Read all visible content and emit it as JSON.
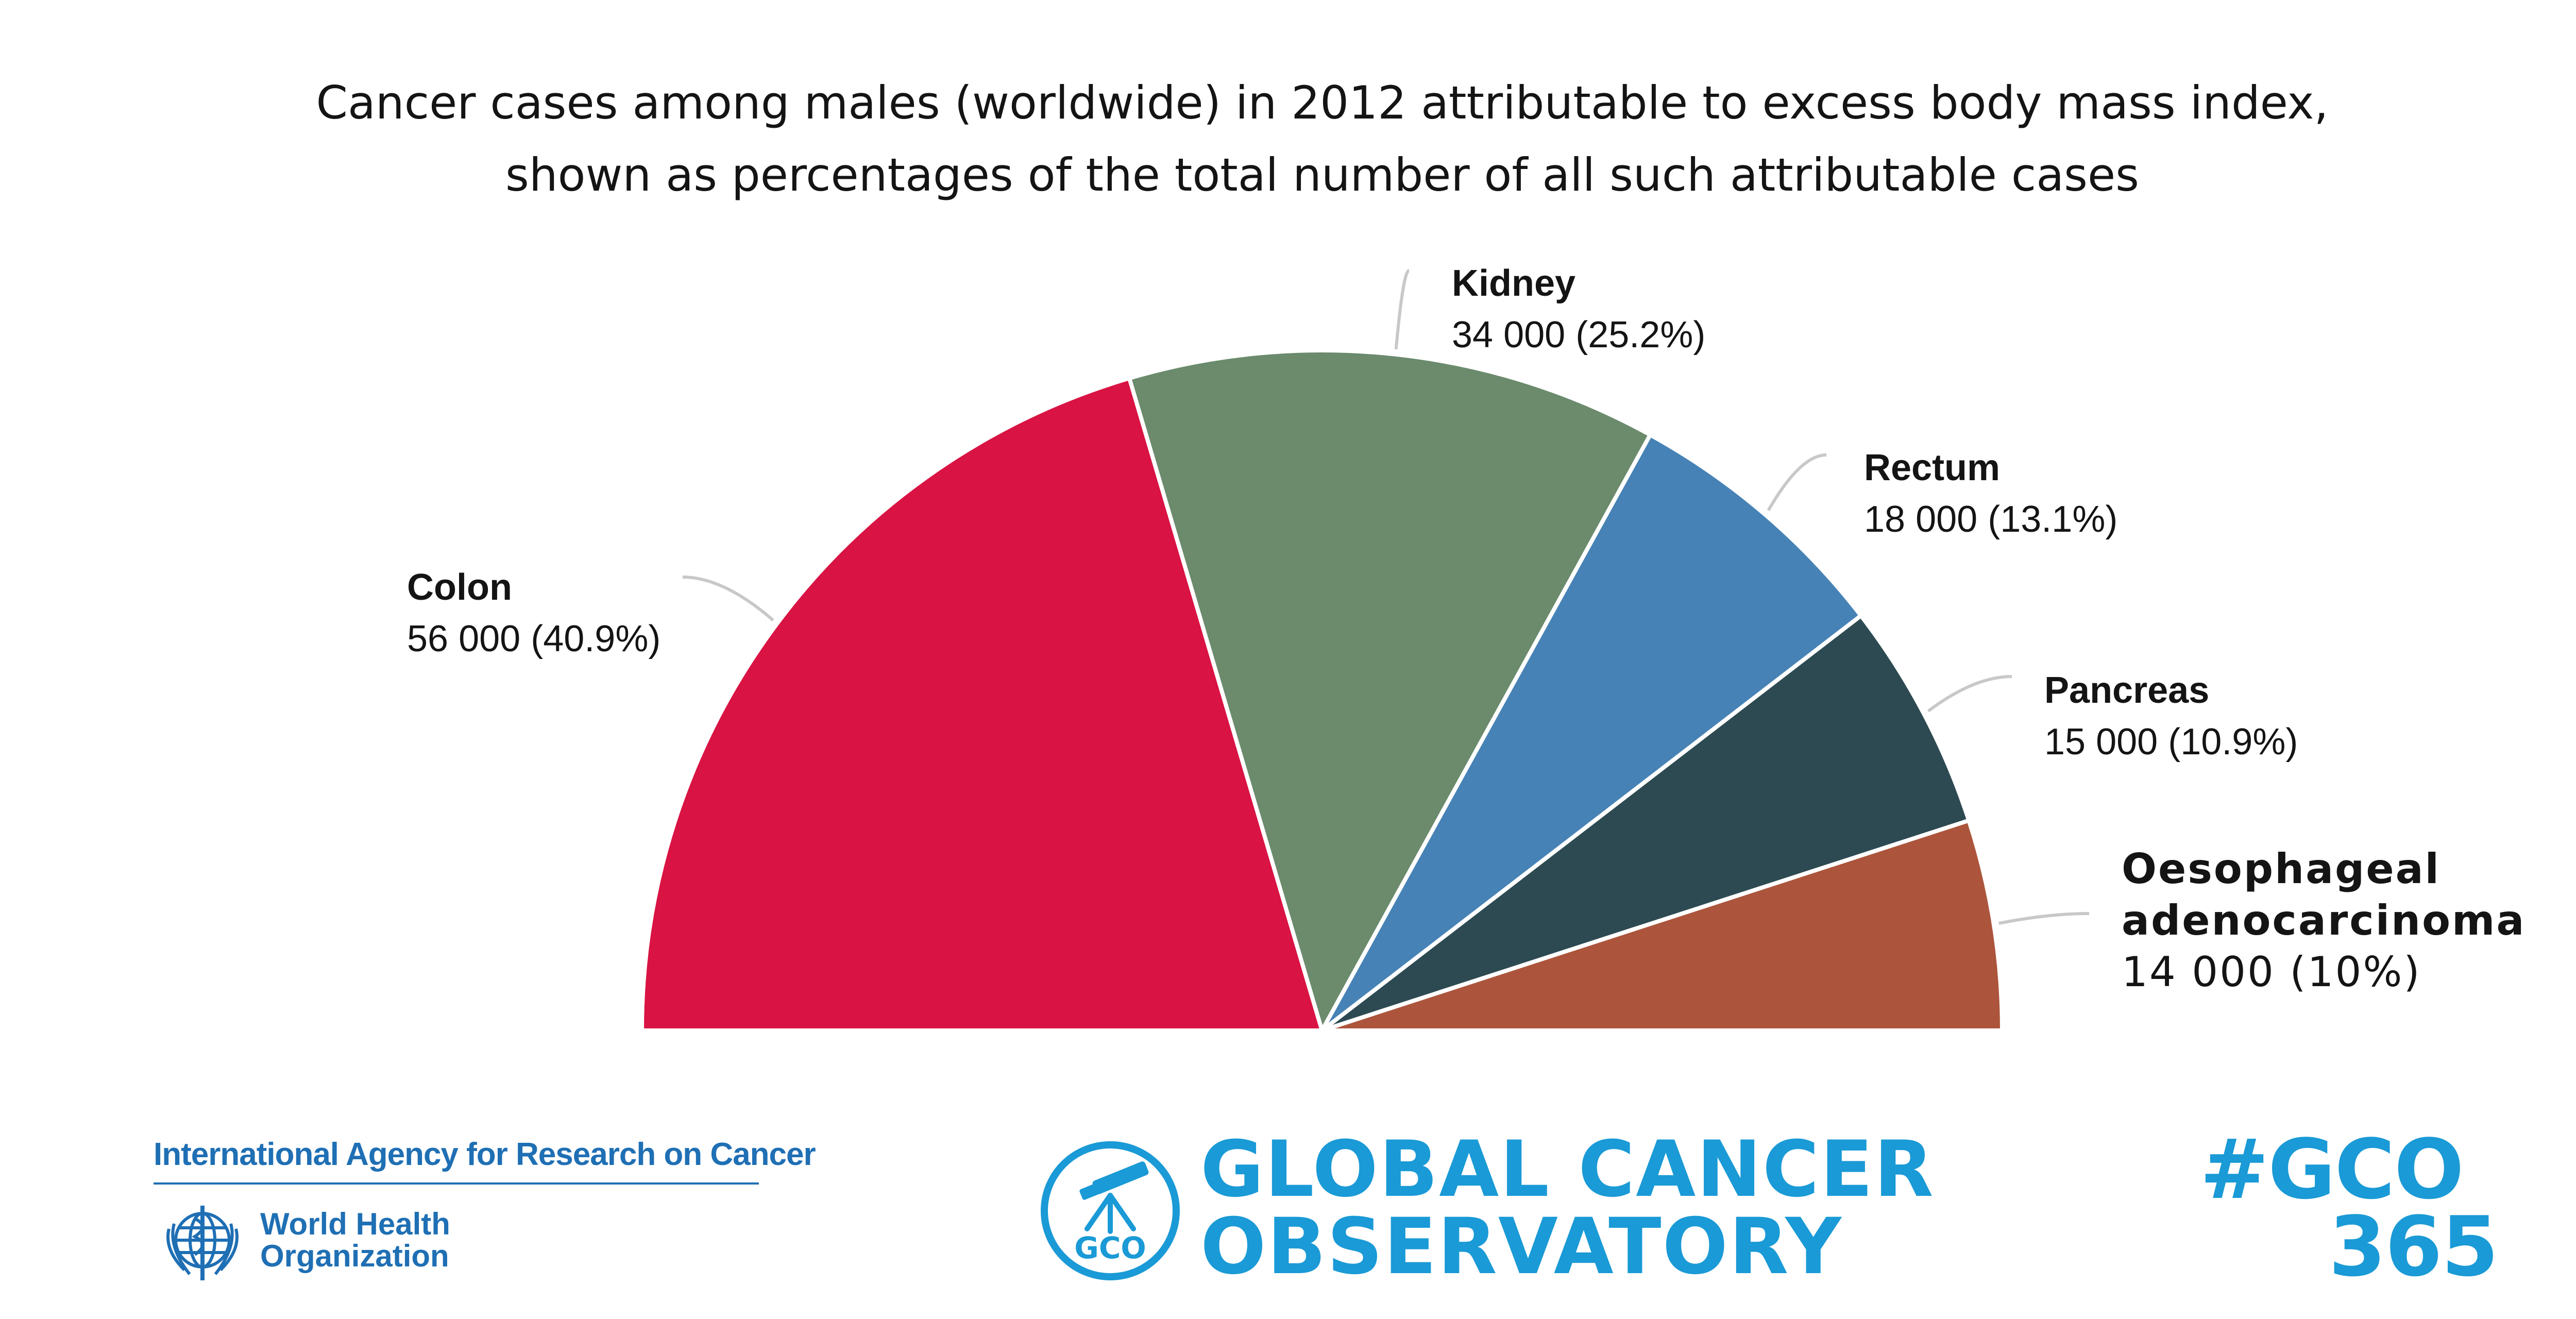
{
  "chart_data": {
    "type": "pie",
    "style": "semicircle",
    "title": "Cancer cases among males (worldwide) in 2012 attributable to excess body mass index,",
    "subtitle": "shown as percentages of the total number of all such attributable cases",
    "slices": [
      {
        "name": "Colon",
        "cases": 56000,
        "percent": 40.9,
        "value_label": "56 000 (40.9%)",
        "color": "#d91343"
      },
      {
        "name": "Kidney",
        "cases": 34000,
        "percent": 25.2,
        "value_label": "34 000 (25.2%)",
        "color": "#6b8b6c"
      },
      {
        "name": "Rectum",
        "cases": 18000,
        "percent": 13.1,
        "value_label": "18 000 (13.1%)",
        "color": "#4682b5"
      },
      {
        "name": "Pancreas",
        "cases": 15000,
        "percent": 10.9,
        "value_label": "15 000 (10.9%)",
        "color": "#2d4a52"
      },
      {
        "name": "Oesophageal adenocarcinoma",
        "cases": 14000,
        "percent": 10,
        "value_label": "14 000 (10%)",
        "color": "#ac553c"
      }
    ],
    "legend": "none"
  },
  "footer": {
    "iarc": "International Agency for Research on Cancer",
    "who_line1": "World Health",
    "who_line2": "Organization",
    "gco_badge": "GCO",
    "gco_line1": "GLOBAL CANCER",
    "gco_line2": "OBSERVATORY",
    "hashtag_line1": "#GCO",
    "hashtag_line2": "365"
  },
  "colors": {
    "brand_blue": "#1a9ad6",
    "iarc_blue": "#1f6fb4",
    "leader_line": "#c8c8c8"
  }
}
